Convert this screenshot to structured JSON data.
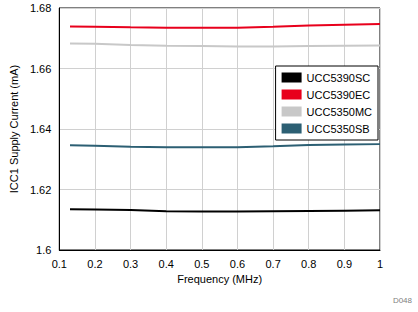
{
  "chart_data": {
    "type": "line",
    "x_label": "Frequency (MHz)",
    "y_label": "ICC1 Supply Current (mA)",
    "annotation": "D048",
    "x": [
      0.13,
      0.2,
      0.3,
      0.4,
      0.5,
      0.6,
      0.7,
      0.8,
      0.9,
      1.0
    ],
    "series": [
      {
        "name": "UCC5390SC",
        "color": "#000000",
        "values": [
          1.6135,
          1.6134,
          1.6132,
          1.6128,
          1.6127,
          1.6127,
          1.6128,
          1.6129,
          1.613,
          1.6131
        ]
      },
      {
        "name": "UCC5390EC",
        "color": "#e8001c",
        "values": [
          1.6739,
          1.6738,
          1.6736,
          1.6735,
          1.6735,
          1.6735,
          1.6738,
          1.6742,
          1.6745,
          1.6747
        ]
      },
      {
        "name": "UCC5350MC",
        "color": "#c8c8c8",
        "values": [
          1.6683,
          1.6682,
          1.6678,
          1.6675,
          1.6674,
          1.6673,
          1.6673,
          1.6674,
          1.6675,
          1.6676
        ]
      },
      {
        "name": "UCC5350SB",
        "color": "#2c5f73",
        "values": [
          1.6346,
          1.6345,
          1.6341,
          1.634,
          1.634,
          1.634,
          1.6343,
          1.6347,
          1.6349,
          1.635
        ]
      }
    ],
    "xlim": [
      0.1,
      1
    ],
    "xticks": [
      0.1,
      0.2,
      0.3,
      0.4,
      0.5,
      0.6,
      0.7,
      0.8,
      0.9,
      1
    ],
    "ylim": [
      1.6,
      1.68
    ],
    "yticks": [
      1.6,
      1.62,
      1.64,
      1.66,
      1.68
    ],
    "grid": true,
    "legend": "upper right"
  }
}
